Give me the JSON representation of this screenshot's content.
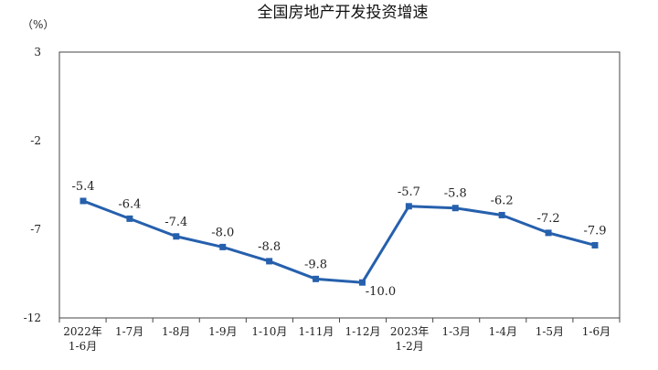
{
  "chart_data": {
    "type": "line",
    "title": "全国房地产开发投资增速",
    "unit_label": "（%）",
    "ylim": [
      -12,
      3
    ],
    "yticks": [
      3,
      -2,
      -7,
      -12
    ],
    "grid": false,
    "categories": [
      [
        "2022年",
        "1-6月"
      ],
      [
        "1-7月"
      ],
      [
        "1-8月"
      ],
      [
        "1-9月"
      ],
      [
        "1-10月"
      ],
      [
        "1-11月"
      ],
      [
        "1-12月"
      ],
      [
        "2023年",
        "1-2月"
      ],
      [
        "1-3月"
      ],
      [
        "1-4月"
      ],
      [
        "1-5月"
      ],
      [
        "1-6月"
      ]
    ],
    "series": [
      {
        "values": [
          -5.4,
          -6.4,
          -7.4,
          -8.0,
          -8.8,
          -9.8,
          -10.0,
          -5.7,
          -5.8,
          -6.2,
          -7.2,
          -7.9
        ],
        "labels": [
          "-5.4",
          "-6.4",
          "-7.4",
          "-8.0",
          "-8.8",
          "-9.8",
          "-10.0",
          "-5.7",
          "-5.8",
          "-6.2",
          "-7.2",
          "-7.9"
        ],
        "color": "#2660ad"
      }
    ]
  }
}
